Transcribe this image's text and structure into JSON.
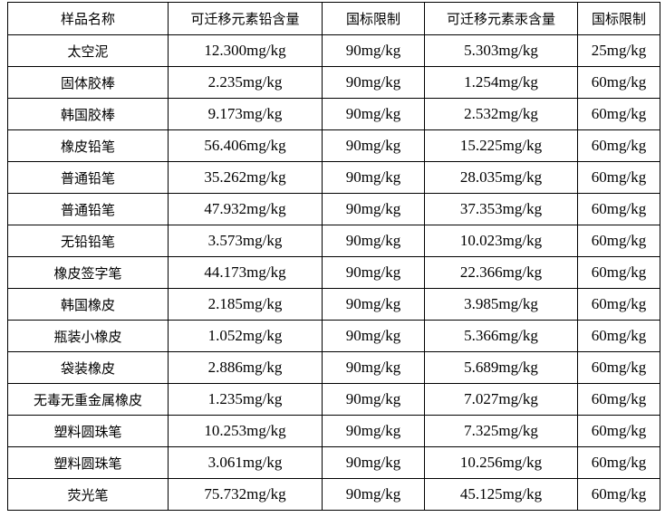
{
  "table": {
    "header": [
      "样品名称",
      "可迁移元素铅含量",
      "国标限制",
      "可迁移元素汞含量",
      "国标限制"
    ],
    "rows": [
      [
        "太空泥",
        "12.300mg/kg",
        "90mg/kg",
        "5.303mg/kg",
        "25mg/kg"
      ],
      [
        "固体胶棒",
        "2.235mg/kg",
        "90mg/kg",
        "1.254mg/kg",
        "60mg/kg"
      ],
      [
        "韩国胶棒",
        "9.173mg/kg",
        "90mg/kg",
        "2.532mg/kg",
        "60mg/kg"
      ],
      [
        "橡皮铅笔",
        "56.406mg/kg",
        "90mg/kg",
        "15.225mg/kg",
        "60mg/kg"
      ],
      [
        "普通铅笔",
        "35.262mg/kg",
        "90mg/kg",
        "28.035mg/kg",
        "60mg/kg"
      ],
      [
        "普通铅笔",
        "47.932mg/kg",
        "90mg/kg",
        "37.353mg/kg",
        "60mg/kg"
      ],
      [
        "无铅铅笔",
        "3.573mg/kg",
        "90mg/kg",
        "10.023mg/kg",
        "60mg/kg"
      ],
      [
        "橡皮签字笔",
        "44.173mg/kg",
        "90mg/kg",
        "22.366mg/kg",
        "60mg/kg"
      ],
      [
        "韩国橡皮",
        "2.185mg/kg",
        "90mg/kg",
        "3.985mg/kg",
        "60mg/kg"
      ],
      [
        "瓶装小橡皮",
        "1.052mg/kg",
        "90mg/kg",
        "5.366mg/kg",
        "60mg/kg"
      ],
      [
        "袋装橡皮",
        "2.886mg/kg",
        "90mg/kg",
        "5.689mg/kg",
        "60mg/kg"
      ],
      [
        "无毒无重金属橡皮",
        "1.235mg/kg",
        "90mg/kg",
        "7.027mg/kg",
        "60mg/kg"
      ],
      [
        "塑料圆珠笔",
        "10.253mg/kg",
        "90mg/kg",
        "7.325mg/kg",
        "60mg/kg"
      ],
      [
        "塑料圆珠笔",
        "3.061mg/kg",
        "90mg/kg",
        "10.256mg/kg",
        "60mg/kg"
      ],
      [
        "荧光笔",
        "75.732mg/kg",
        "90mg/kg",
        "45.125mg/kg",
        "60mg/kg"
      ]
    ]
  }
}
